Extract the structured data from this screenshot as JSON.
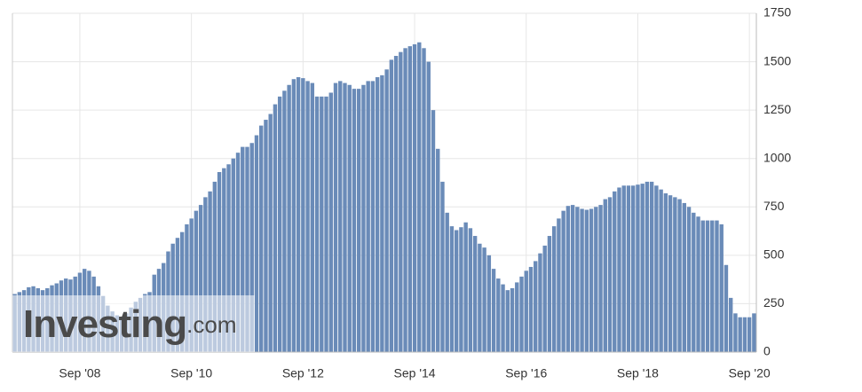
{
  "chart_data": {
    "type": "bar",
    "categories": [
      null,
      null,
      null,
      null,
      null,
      null,
      null,
      null,
      null,
      null,
      null,
      null,
      null,
      null,
      "Sep '08",
      null,
      null,
      null,
      null,
      null,
      null,
      null,
      null,
      null,
      null,
      null,
      null,
      null,
      null,
      null,
      null,
      null,
      null,
      null,
      null,
      null,
      null,
      null,
      "Sep '10",
      null,
      null,
      null,
      null,
      null,
      null,
      null,
      null,
      null,
      null,
      null,
      null,
      null,
      null,
      null,
      null,
      null,
      null,
      null,
      null,
      null,
      null,
      null,
      "Sep '12",
      null,
      null,
      null,
      null,
      null,
      null,
      null,
      null,
      null,
      null,
      null,
      null,
      null,
      null,
      null,
      null,
      null,
      null,
      null,
      null,
      null,
      null,
      null,
      "Sep '14",
      null,
      null,
      null,
      null,
      null,
      null,
      null,
      null,
      null,
      null,
      null,
      null,
      null,
      null,
      null,
      null,
      null,
      null,
      null,
      null,
      null,
      null,
      null,
      "Sep '16",
      null,
      null,
      null,
      null,
      null,
      null,
      null,
      null,
      null,
      null,
      null,
      null,
      null,
      null,
      null,
      null,
      null,
      null,
      null,
      null,
      null,
      null,
      null,
      "Sep '18",
      null,
      null,
      null,
      null,
      null,
      null,
      null,
      null,
      null,
      null,
      null,
      null,
      null,
      null,
      null,
      null,
      null,
      null,
      null,
      null,
      null,
      null,
      null,
      "Sep '20",
      null
    ],
    "values": [
      300,
      310,
      320,
      335,
      340,
      330,
      320,
      330,
      345,
      355,
      370,
      380,
      375,
      390,
      410,
      430,
      420,
      390,
      340,
      290,
      240,
      210,
      190,
      180,
      200,
      230,
      260,
      280,
      300,
      310,
      400,
      430,
      460,
      520,
      560,
      590,
      620,
      660,
      690,
      730,
      760,
      800,
      830,
      880,
      930,
      950,
      970,
      1000,
      1030,
      1060,
      1060,
      1080,
      1120,
      1170,
      1200,
      1230,
      1280,
      1320,
      1350,
      1380,
      1410,
      1420,
      1415,
      1400,
      1390,
      1320,
      1320,
      1320,
      1340,
      1390,
      1400,
      1390,
      1380,
      1360,
      1360,
      1380,
      1400,
      1400,
      1420,
      1430,
      1460,
      1510,
      1530,
      1550,
      1570,
      1580,
      1590,
      1600,
      1570,
      1500,
      1250,
      1050,
      880,
      720,
      650,
      630,
      645,
      670,
      640,
      600,
      560,
      540,
      500,
      430,
      380,
      350,
      320,
      330,
      360,
      390,
      420,
      440,
      470,
      510,
      550,
      600,
      650,
      690,
      730,
      755,
      760,
      750,
      740,
      735,
      740,
      750,
      760,
      790,
      800,
      830,
      850,
      860,
      860,
      860,
      865,
      870,
      880,
      880,
      860,
      840,
      820,
      810,
      800,
      790,
      770,
      750,
      720,
      700,
      680,
      680,
      680,
      680,
      660,
      450,
      280,
      200,
      180,
      180,
      180,
      200
    ],
    "color": "#6a8bb8",
    "ylim": [
      0,
      1750
    ],
    "yticks": [
      0,
      250,
      500,
      750,
      1000,
      1250,
      1500,
      1750
    ],
    "grid": true,
    "watermark": {
      "brand": "Investing",
      "suffix": ".com"
    }
  }
}
